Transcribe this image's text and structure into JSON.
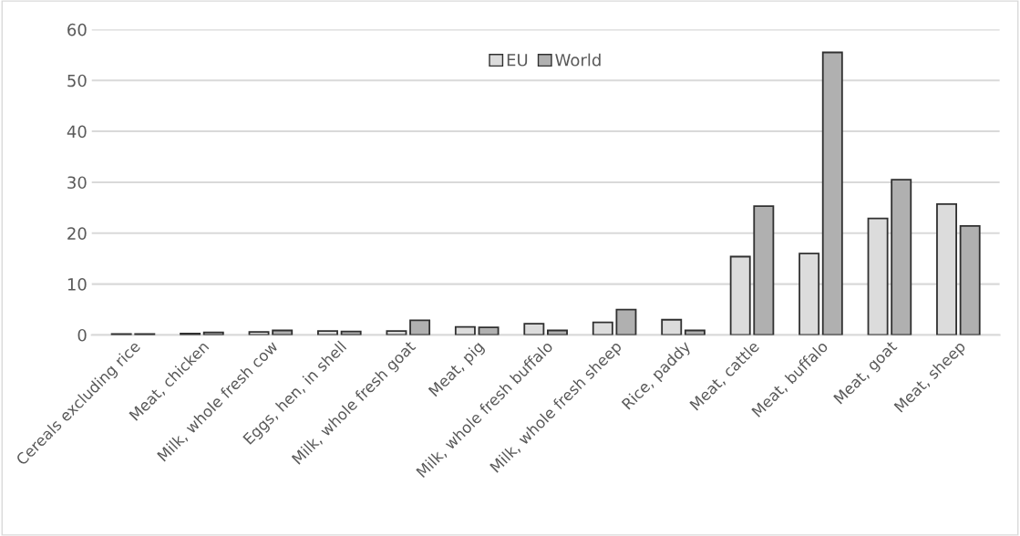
{
  "chart_data": {
    "type": "bar",
    "categories": [
      "Cereals excluding rice",
      "Meat, chicken",
      "Milk, whole fresh cow",
      "Eggs, hen, in shell",
      "Milk, whole fresh goat",
      "Meat, pig",
      "Milk, whole fresh buffalo",
      "Milk, whole fresh sheep",
      "Rice, paddy",
      "Meat, cattle",
      "Meat, buffalo",
      "Meat, goat",
      "Meat, sheep"
    ],
    "series": [
      {
        "name": "EU",
        "color": "#dcdcdc",
        "values": [
          0.2,
          0.3,
          0.6,
          0.8,
          0.8,
          1.6,
          2.2,
          2.5,
          3.0,
          15.4,
          16.0,
          22.9,
          25.7
        ]
      },
      {
        "name": "World",
        "color": "#b0b0b0",
        "values": [
          0.2,
          0.5,
          0.9,
          0.7,
          2.9,
          1.5,
          0.9,
          5.0,
          0.9,
          25.3,
          55.5,
          30.5,
          21.4
        ]
      }
    ],
    "ylim": [
      0,
      60
    ],
    "yticks": [
      0,
      10,
      20,
      30,
      40,
      50,
      60
    ],
    "grid": "y",
    "legend": "top"
  }
}
